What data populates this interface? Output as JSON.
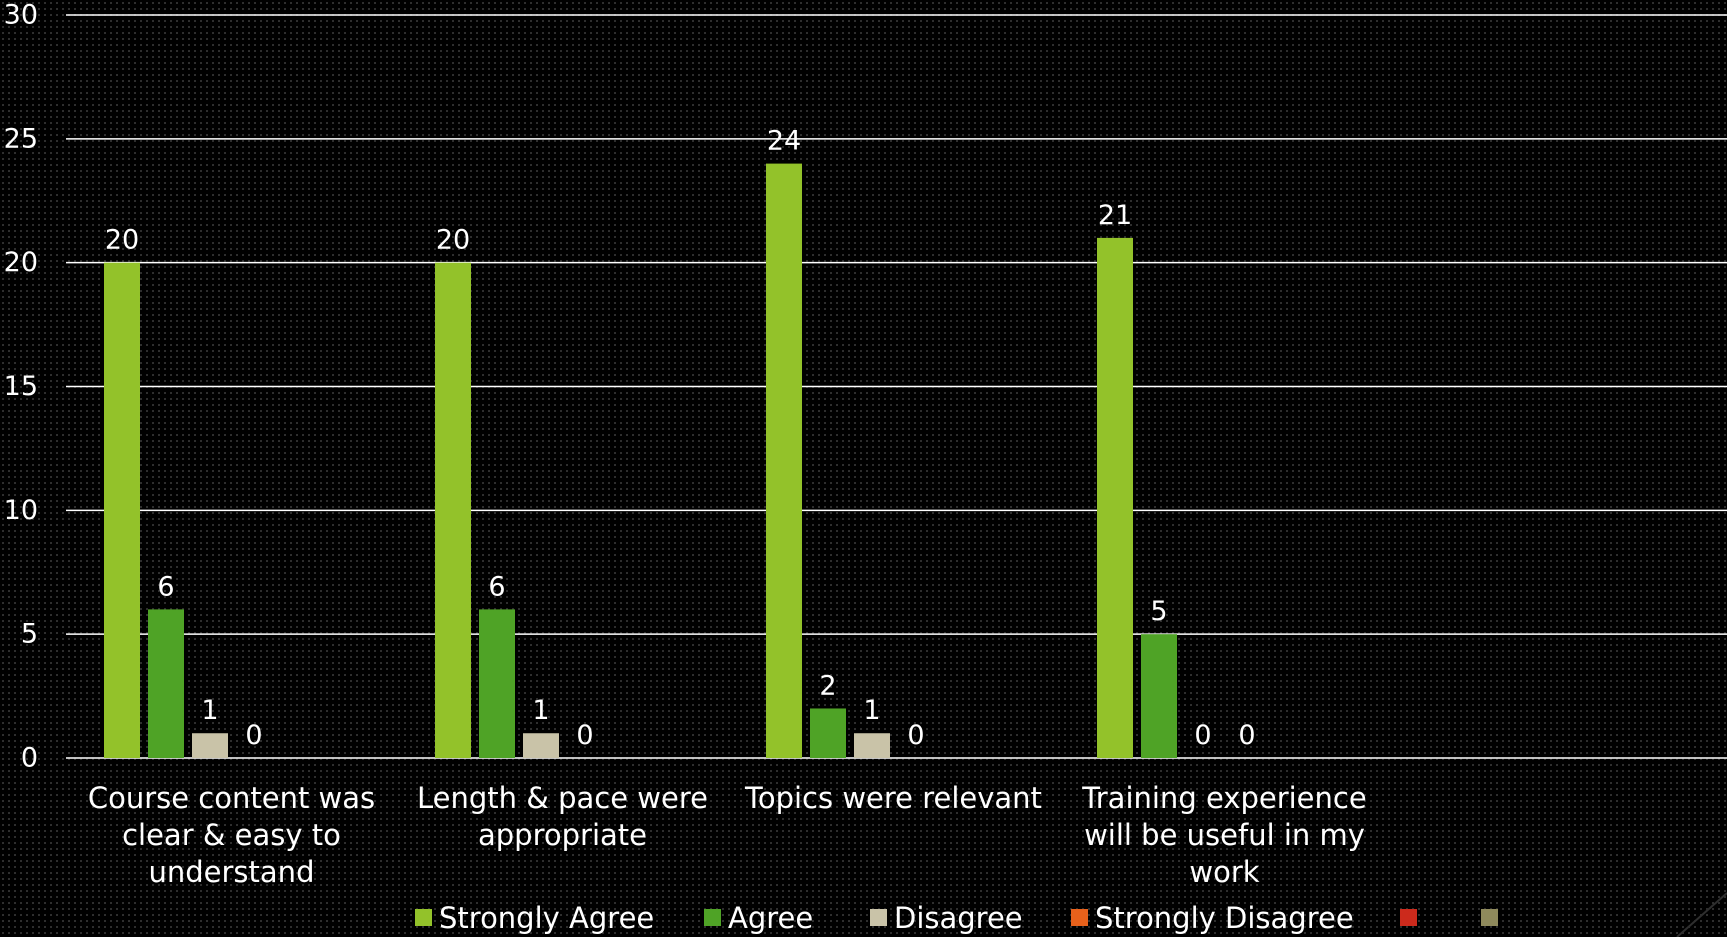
{
  "chart_data": {
    "type": "bar",
    "title": "",
    "xlabel": "",
    "ylabel": "",
    "ylim": [
      0,
      30
    ],
    "yticks": [
      "0",
      "5",
      "10",
      "15",
      "20",
      "25",
      "30"
    ],
    "grid": true,
    "legend_position": "bottom",
    "categories": [
      [
        "Course content was",
        "clear & easy to",
        "understand"
      ],
      [
        "Length & pace were",
        "appropriate"
      ],
      [
        "Topics were relevant"
      ],
      [
        "Training experience",
        "will be useful in my",
        "work"
      ],
      [],
      []
    ],
    "series": [
      {
        "name": "Strongly Agree",
        "color": "#93c22a",
        "values": [
          20,
          20,
          24,
          21,
          null,
          null
        ]
      },
      {
        "name": "Agree",
        "color": "#4fa326",
        "values": [
          6,
          6,
          2,
          5,
          null,
          null
        ]
      },
      {
        "name": "Disagree",
        "color": "#c9c3a8",
        "values": [
          1,
          1,
          1,
          0,
          null,
          null
        ]
      },
      {
        "name": "Strongly Disagree",
        "color": "#e8611b",
        "values": [
          0,
          0,
          0,
          0,
          null,
          null
        ]
      },
      {
        "name": "",
        "color": "#cc2a1c",
        "values": [
          null,
          null,
          null,
          null,
          null,
          null
        ]
      },
      {
        "name": "",
        "color": "#8f8a5c",
        "values": [
          null,
          null,
          null,
          null,
          null,
          null
        ]
      }
    ]
  }
}
